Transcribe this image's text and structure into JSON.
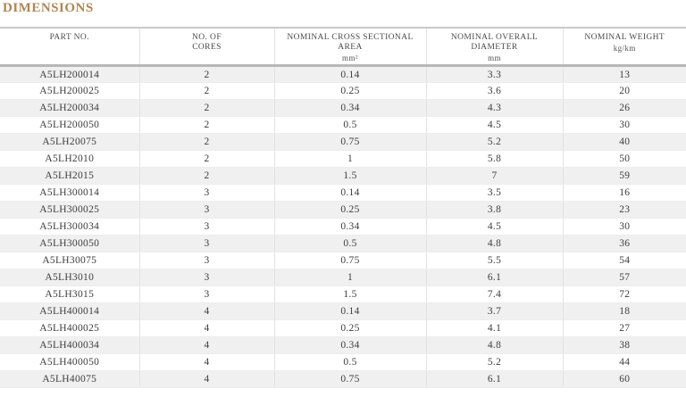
{
  "title": "DIMENSIONS",
  "theme": {
    "title_color": "#b1854f",
    "stripe_color": "#f0f0f0",
    "header_bar_color": "#b7b7b7",
    "top_border_color": "#cacaca",
    "grid_color": "#e2e2e2",
    "header_text_color": "#4a4a4a",
    "cell_text_color": "#3d3d3d"
  },
  "table": {
    "columns": [
      {
        "label": "PART NO.",
        "unit": ""
      },
      {
        "label": "NO. OF\nCORES",
        "unit": ""
      },
      {
        "label": "NOMINAL CROSS SECTIONAL AREA",
        "unit": "mm²"
      },
      {
        "label": "NOMINAL OVERALL DIAMETER",
        "unit": "mm"
      },
      {
        "label": "NOMINAL WEIGHT",
        "unit": "kg/km"
      }
    ],
    "column_keys": [
      "part-no",
      "cores",
      "area",
      "diameter",
      "weight"
    ],
    "rows": [
      [
        "A5LH200014",
        "2",
        "0.14",
        "3.3",
        "13"
      ],
      [
        "A5LH200025",
        "2",
        "0.25",
        "3.6",
        "20"
      ],
      [
        "A5LH200034",
        "2",
        "0.34",
        "4.3",
        "26"
      ],
      [
        "A5LH200050",
        "2",
        "0.5",
        "4.5",
        "30"
      ],
      [
        "A5LH20075",
        "2",
        "0.75",
        "5.2",
        "40"
      ],
      [
        "A5LH2010",
        "2",
        "1",
        "5.8",
        "50"
      ],
      [
        "A5LH2015",
        "2",
        "1.5",
        "7",
        "59"
      ],
      [
        "A5LH300014",
        "3",
        "0.14",
        "3.5",
        "16"
      ],
      [
        "A5LH300025",
        "3",
        "0.25",
        "3.8",
        "23"
      ],
      [
        "A5LH300034",
        "3",
        "0.34",
        "4.5",
        "30"
      ],
      [
        "A5LH300050",
        "3",
        "0.5",
        "4.8",
        "36"
      ],
      [
        "A5LH30075",
        "3",
        "0.75",
        "5.5",
        "54"
      ],
      [
        "A5LH3010",
        "3",
        "1",
        "6.1",
        "57"
      ],
      [
        "A5LH3015",
        "3",
        "1.5",
        "7.4",
        "72"
      ],
      [
        "A5LH400014",
        "4",
        "0.14",
        "3.7",
        "18"
      ],
      [
        "A5LH400025",
        "4",
        "0.25",
        "4.1",
        "27"
      ],
      [
        "A5LH400034",
        "4",
        "0.34",
        "4.8",
        "38"
      ],
      [
        "A5LH400050",
        "4",
        "0.5",
        "5.2",
        "44"
      ],
      [
        "A5LH40075",
        "4",
        "0.75",
        "6.1",
        "60"
      ]
    ]
  }
}
